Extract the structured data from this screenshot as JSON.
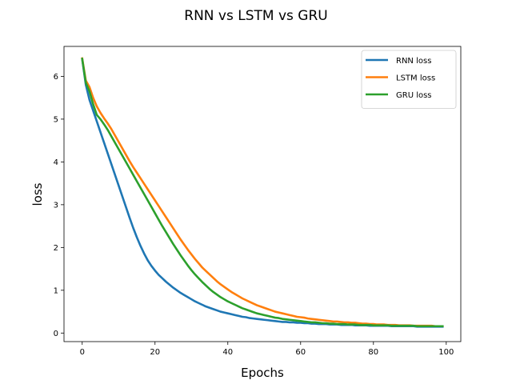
{
  "chart_data": {
    "type": "line",
    "title": "RNN vs LSTM vs GRU",
    "xlabel": "Epochs",
    "ylabel": "loss",
    "xlim": [
      -5,
      104
    ],
    "ylim": [
      -0.2,
      6.7
    ],
    "xticks": [
      0,
      20,
      40,
      60,
      80,
      100
    ],
    "yticks": [
      0,
      1,
      2,
      3,
      4,
      5,
      6
    ],
    "grid": false,
    "legend_position": "top-right",
    "x": [
      0,
      1,
      2,
      3,
      4,
      5,
      6,
      7,
      8,
      9,
      10,
      11,
      12,
      13,
      14,
      15,
      16,
      17,
      18,
      19,
      20,
      21,
      22,
      23,
      24,
      25,
      26,
      27,
      28,
      29,
      30,
      31,
      32,
      33,
      34,
      35,
      36,
      37,
      38,
      39,
      40,
      41,
      42,
      43,
      44,
      45,
      46,
      47,
      48,
      49,
      50,
      51,
      52,
      53,
      54,
      55,
      56,
      57,
      58,
      59,
      60,
      61,
      62,
      63,
      64,
      65,
      66,
      67,
      68,
      69,
      70,
      71,
      72,
      73,
      74,
      75,
      76,
      77,
      78,
      79,
      80,
      81,
      82,
      83,
      84,
      85,
      86,
      87,
      88,
      89,
      90,
      91,
      92,
      93,
      94,
      95,
      96,
      97,
      98,
      99
    ],
    "series": [
      {
        "name": "RNN loss",
        "color": "#1f77b4",
        "values": [
          6.4,
          5.8,
          5.45,
          5.2,
          4.95,
          4.7,
          4.45,
          4.2,
          3.95,
          3.7,
          3.45,
          3.2,
          2.95,
          2.7,
          2.46,
          2.24,
          2.04,
          1.86,
          1.7,
          1.57,
          1.46,
          1.36,
          1.28,
          1.2,
          1.13,
          1.06,
          1.0,
          0.94,
          0.89,
          0.84,
          0.79,
          0.74,
          0.7,
          0.66,
          0.62,
          0.59,
          0.56,
          0.53,
          0.5,
          0.48,
          0.46,
          0.44,
          0.42,
          0.4,
          0.38,
          0.37,
          0.35,
          0.34,
          0.33,
          0.32,
          0.31,
          0.3,
          0.29,
          0.28,
          0.27,
          0.26,
          0.26,
          0.25,
          0.25,
          0.24,
          0.24,
          0.23,
          0.23,
          0.22,
          0.22,
          0.21,
          0.21,
          0.21,
          0.2,
          0.2,
          0.2,
          0.19,
          0.19,
          0.19,
          0.19,
          0.18,
          0.18,
          0.18,
          0.18,
          0.17,
          0.17,
          0.17,
          0.17,
          0.17,
          0.17,
          0.16,
          0.16,
          0.16,
          0.16,
          0.16,
          0.16,
          0.16,
          0.15,
          0.15,
          0.15,
          0.15,
          0.15,
          0.15,
          0.15,
          0.15
        ]
      },
      {
        "name": "LSTM loss",
        "color": "#ff7f0e",
        "values": [
          6.42,
          5.9,
          5.75,
          5.5,
          5.3,
          5.15,
          5.02,
          4.9,
          4.77,
          4.62,
          4.47,
          4.32,
          4.17,
          4.02,
          3.88,
          3.75,
          3.62,
          3.49,
          3.36,
          3.23,
          3.1,
          2.97,
          2.84,
          2.71,
          2.58,
          2.45,
          2.32,
          2.19,
          2.07,
          1.95,
          1.84,
          1.73,
          1.63,
          1.53,
          1.45,
          1.37,
          1.29,
          1.21,
          1.14,
          1.08,
          1.02,
          0.96,
          0.91,
          0.86,
          0.81,
          0.77,
          0.73,
          0.69,
          0.65,
          0.62,
          0.59,
          0.56,
          0.53,
          0.5,
          0.48,
          0.46,
          0.44,
          0.42,
          0.4,
          0.38,
          0.37,
          0.36,
          0.34,
          0.33,
          0.32,
          0.31,
          0.3,
          0.29,
          0.28,
          0.27,
          0.27,
          0.26,
          0.25,
          0.25,
          0.24,
          0.24,
          0.23,
          0.22,
          0.22,
          0.21,
          0.21,
          0.2,
          0.2,
          0.2,
          0.19,
          0.19,
          0.19,
          0.18,
          0.18,
          0.18,
          0.18,
          0.17,
          0.17,
          0.17,
          0.17,
          0.17,
          0.17,
          0.16,
          0.16,
          0.16
        ]
      },
      {
        "name": "GRU loss",
        "color": "#2ca02c",
        "values": [
          6.41,
          5.85,
          5.65,
          5.35,
          5.1,
          5.0,
          4.88,
          4.75,
          4.6,
          4.45,
          4.3,
          4.15,
          4.0,
          3.85,
          3.7,
          3.55,
          3.4,
          3.25,
          3.1,
          2.95,
          2.8,
          2.65,
          2.5,
          2.36,
          2.22,
          2.08,
          1.95,
          1.82,
          1.7,
          1.58,
          1.47,
          1.37,
          1.28,
          1.19,
          1.11,
          1.03,
          0.96,
          0.9,
          0.84,
          0.79,
          0.74,
          0.7,
          0.66,
          0.62,
          0.58,
          0.55,
          0.52,
          0.49,
          0.46,
          0.44,
          0.42,
          0.4,
          0.38,
          0.36,
          0.35,
          0.33,
          0.32,
          0.31,
          0.3,
          0.29,
          0.28,
          0.27,
          0.26,
          0.25,
          0.25,
          0.24,
          0.23,
          0.23,
          0.22,
          0.22,
          0.21,
          0.21,
          0.21,
          0.2,
          0.2,
          0.2,
          0.19,
          0.19,
          0.19,
          0.19,
          0.18,
          0.18,
          0.18,
          0.18,
          0.18,
          0.17,
          0.17,
          0.17,
          0.17,
          0.17,
          0.17,
          0.17,
          0.16,
          0.16,
          0.16,
          0.16,
          0.16,
          0.16,
          0.16,
          0.16
        ]
      }
    ]
  }
}
